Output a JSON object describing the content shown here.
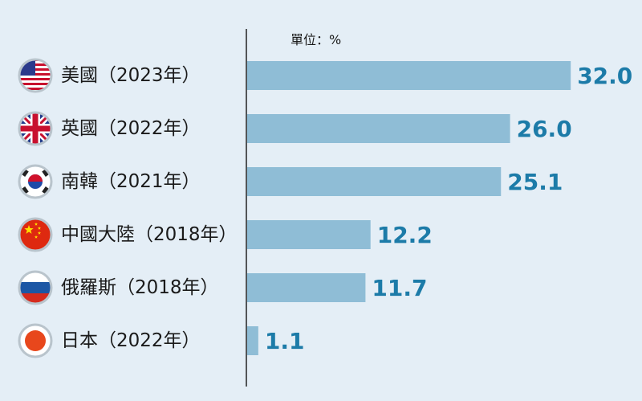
{
  "chart_data": {
    "type": "bar",
    "orientation": "horizontal",
    "unit_label": "單位：%",
    "categories": [
      "美國（2023年）",
      "英國（2022年）",
      "南韓（2021年）",
      "中國大陸（2018年）",
      "俄羅斯（2018年）",
      "日本（2022年）"
    ],
    "values": [
      32.0,
      26.0,
      25.1,
      12.2,
      11.7,
      1.1
    ],
    "value_labels": [
      "32.0",
      "26.0",
      "25.1",
      "12.2",
      "11.7",
      "1.1"
    ],
    "flag_icons": [
      "usa-flag-icon",
      "uk-flag-icon",
      "south-korea-flag-icon",
      "china-flag-icon",
      "russia-flag-icon",
      "japan-flag-icon"
    ],
    "bar_color": "#8fbdd6",
    "label_color": "#1c7ba8",
    "background_color": "#e4eef6",
    "grid": false
  }
}
